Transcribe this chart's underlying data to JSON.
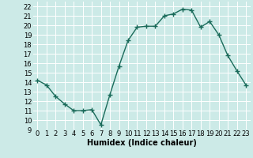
{
  "x": [
    0,
    1,
    2,
    3,
    4,
    5,
    6,
    7,
    8,
    9,
    10,
    11,
    12,
    13,
    14,
    15,
    16,
    17,
    18,
    19,
    20,
    21,
    22,
    23
  ],
  "y": [
    14.2,
    13.7,
    12.5,
    11.7,
    11.0,
    11.0,
    11.1,
    9.5,
    12.7,
    15.7,
    18.4,
    19.8,
    19.9,
    19.9,
    21.0,
    21.2,
    21.7,
    21.6,
    19.8,
    20.4,
    19.0,
    16.8,
    15.2,
    13.7
  ],
  "line_color": "#1a6b5a",
  "marker": "+",
  "marker_size": 4,
  "marker_color": "#1a6b5a",
  "bg_color": "#cceae7",
  "grid_color": "#ffffff",
  "xlabel": "Humidex (Indice chaleur)",
  "xlabel_fontsize": 7,
  "xlabel_bold": true,
  "ylim": [
    9,
    22.5
  ],
  "yticks": [
    9,
    10,
    11,
    12,
    13,
    14,
    15,
    16,
    17,
    18,
    19,
    20,
    21,
    22
  ],
  "xticks": [
    0,
    1,
    2,
    3,
    4,
    5,
    6,
    7,
    8,
    9,
    10,
    11,
    12,
    13,
    14,
    15,
    16,
    17,
    18,
    19,
    20,
    21,
    22,
    23
  ],
  "tick_fontsize": 6,
  "line_width": 1.0
}
